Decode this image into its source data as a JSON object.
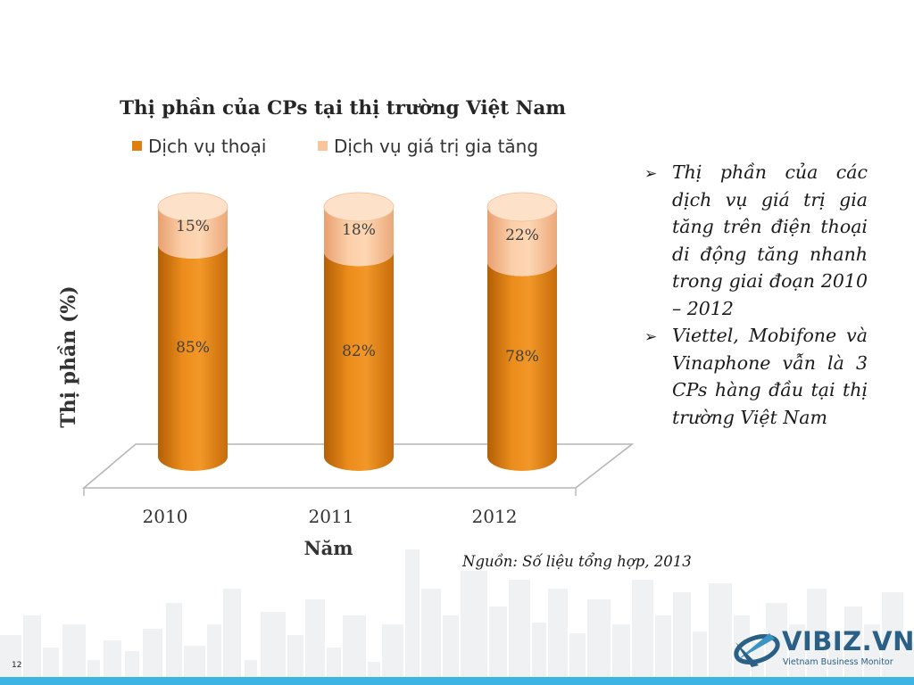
{
  "chart_data": {
    "type": "bar",
    "stacked": true,
    "style": "3d-cylinder",
    "title": "Thị phần của CPs tại thị trường Việt Nam",
    "xlabel": "Năm",
    "ylabel": "Thị phần (%)",
    "categories": [
      "2010",
      "2011",
      "2012"
    ],
    "series": [
      {
        "name": "Dịch vụ thoại",
        "values": [
          85,
          82,
          78
        ],
        "labels": [
          "85%",
          "82%",
          "78%"
        ],
        "color": "#e07f0f"
      },
      {
        "name": "Dịch vụ giá trị gia tăng",
        "values": [
          15,
          18,
          22
        ],
        "labels": [
          "15%",
          "18%",
          "22%"
        ],
        "color": "#f7c49c"
      }
    ],
    "ylim": [
      0,
      100
    ],
    "legend": "top",
    "grid": false
  },
  "bullets": [
    "Thị phần của các dịch vụ giá trị gia tăng trên điện thoại di động tăng nhanh trong giai đoạn 2010 – 2012",
    "Viettel, Mobifone và Vinaphone vẫn là 3 CPs hàng đầu tại thị trường Việt Nam"
  ],
  "bullet_icon": "arrow-bullet-icon",
  "source": "Nguồn: Số liệu tổng hợp, 2013",
  "slide_number": "12",
  "logo": {
    "name": "VIBIZ.VN",
    "tagline": "Vietnam Business Monitor"
  },
  "colors": {
    "accent_bar": "#3cb4e4",
    "logo": "#2a5f86",
    "skyline": "#eceef0"
  }
}
